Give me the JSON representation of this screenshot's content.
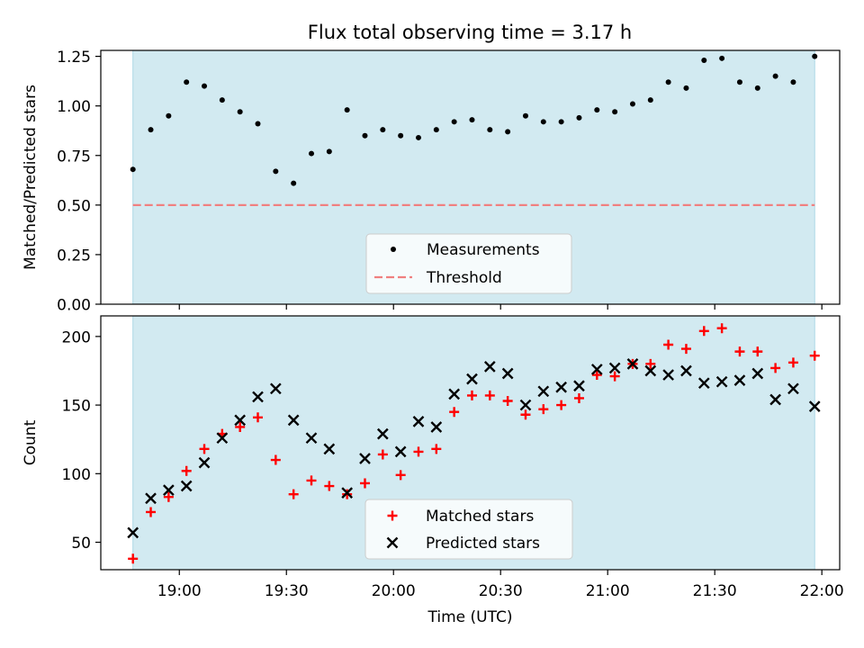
{
  "title": "Flux total observing time = 3.17 h",
  "colors": {
    "shade": "#add8e6",
    "measurement": "#000000",
    "threshold": "#f08080",
    "matched": "#ff0000",
    "predicted": "#000000"
  },
  "chart_data": [
    {
      "type": "scatter",
      "ylabel": "Matched/Predicted stars",
      "ylim": [
        0,
        1.28
      ],
      "yticks": [
        0.0,
        0.25,
        0.5,
        0.75,
        1.0,
        1.25
      ],
      "ytick_labels": [
        "0.00",
        "0.25",
        "0.50",
        "0.75",
        "1.00",
        "1.25"
      ],
      "shaded_span": [
        "18:47",
        "21:58"
      ],
      "threshold": 0.5,
      "legend_position": "bottom-center",
      "legend": [
        "Measurements",
        "Threshold"
      ],
      "series": [
        {
          "name": "Measurements",
          "marker": "dot",
          "x": [
            "18:47",
            "18:52",
            "18:57",
            "19:02",
            "19:07",
            "19:12",
            "19:17",
            "19:22",
            "19:27",
            "19:32",
            "19:37",
            "19:42",
            "19:47",
            "19:52",
            "19:57",
            "20:02",
            "20:07",
            "20:12",
            "20:17",
            "20:22",
            "20:27",
            "20:32",
            "20:37",
            "20:42",
            "20:47",
            "20:52",
            "20:57",
            "21:02",
            "21:07",
            "21:12",
            "21:17",
            "21:22",
            "21:27",
            "21:32",
            "21:37",
            "21:42",
            "21:47",
            "21:52",
            "21:58"
          ],
          "y": [
            0.68,
            0.88,
            0.95,
            1.12,
            1.1,
            1.03,
            0.97,
            0.91,
            0.67,
            0.61,
            0.76,
            0.77,
            0.98,
            0.85,
            0.88,
            0.85,
            0.84,
            0.88,
            0.92,
            0.93,
            0.88,
            0.87,
            0.95,
            0.92,
            0.92,
            0.94,
            0.98,
            0.97,
            1.01,
            1.03,
            1.12,
            1.09,
            1.23,
            1.24,
            1.12,
            1.09,
            1.15,
            1.12,
            1.25
          ]
        }
      ]
    },
    {
      "type": "scatter",
      "xlabel": "Time (UTC)",
      "ylabel": "Count",
      "ylim": [
        30,
        215
      ],
      "yticks": [
        50,
        100,
        150,
        200
      ],
      "ytick_labels": [
        "50",
        "100",
        "150",
        "200"
      ],
      "xticks": [
        "19:00",
        "19:30",
        "20:00",
        "20:30",
        "21:00",
        "21:30",
        "22:00"
      ],
      "xlim": [
        "18:38",
        "22:05"
      ],
      "shaded_span": [
        "18:47",
        "21:58"
      ],
      "legend_position": "bottom-center",
      "legend": [
        "Matched stars",
        "Predicted stars"
      ],
      "series": [
        {
          "name": "Matched stars",
          "marker": "plus",
          "x": [
            "18:47",
            "18:52",
            "18:57",
            "19:02",
            "19:07",
            "19:12",
            "19:17",
            "19:22",
            "19:27",
            "19:32",
            "19:37",
            "19:42",
            "19:47",
            "19:52",
            "19:57",
            "20:02",
            "20:07",
            "20:12",
            "20:17",
            "20:22",
            "20:27",
            "20:32",
            "20:37",
            "20:42",
            "20:47",
            "20:52",
            "20:57",
            "21:02",
            "21:07",
            "21:12",
            "21:17",
            "21:22",
            "21:27",
            "21:32",
            "21:37",
            "21:42",
            "21:47",
            "21:52",
            "21:58"
          ],
          "y": [
            38,
            72,
            83,
            102,
            118,
            129,
            134,
            141,
            110,
            85,
            95,
            91,
            85,
            93,
            114,
            99,
            116,
            118,
            145,
            157,
            157,
            153,
            143,
            147,
            150,
            155,
            172,
            171,
            180,
            180,
            194,
            191,
            204,
            206,
            189,
            189,
            177,
            181,
            186
          ]
        },
        {
          "name": "Predicted stars",
          "marker": "x",
          "x": [
            "18:47",
            "18:52",
            "18:57",
            "19:02",
            "19:07",
            "19:12",
            "19:17",
            "19:22",
            "19:27",
            "19:32",
            "19:37",
            "19:42",
            "19:47",
            "19:52",
            "19:57",
            "20:02",
            "20:07",
            "20:12",
            "20:17",
            "20:22",
            "20:27",
            "20:32",
            "20:37",
            "20:42",
            "20:47",
            "20:52",
            "20:57",
            "21:02",
            "21:07",
            "21:12",
            "21:17",
            "21:22",
            "21:27",
            "21:32",
            "21:37",
            "21:42",
            "21:47",
            "21:52",
            "21:58"
          ],
          "y": [
            57,
            82,
            88,
            91,
            108,
            126,
            139,
            156,
            162,
            139,
            126,
            118,
            86,
            111,
            129,
            116,
            138,
            134,
            158,
            169,
            178,
            173,
            150,
            160,
            163,
            164,
            176,
            177,
            180,
            175,
            172,
            175,
            166,
            167,
            168,
            173,
            154,
            162,
            149
          ]
        }
      ]
    }
  ]
}
